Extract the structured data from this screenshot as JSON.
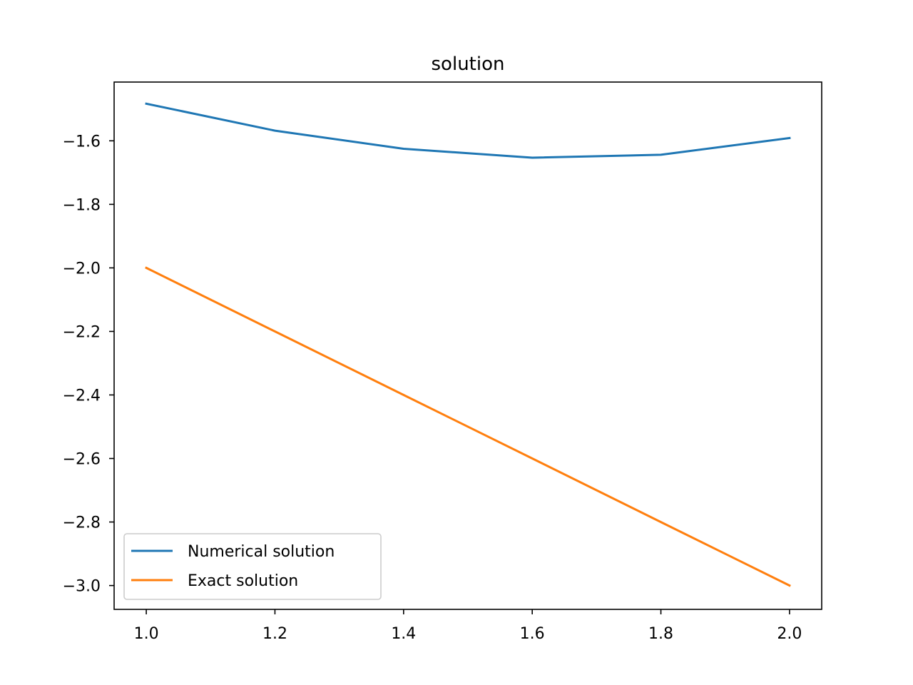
{
  "chart_data": {
    "type": "line",
    "title": "solution",
    "xlabel": "",
    "ylabel": "",
    "xlim": [
      0.95,
      2.05
    ],
    "ylim": [
      -3.075,
      -1.415
    ],
    "xticks": [
      1.0,
      1.2,
      1.4,
      1.6,
      1.8,
      2.0
    ],
    "xtick_labels": [
      "1.0",
      "1.2",
      "1.4",
      "1.6",
      "1.8",
      "2.0"
    ],
    "yticks": [
      -3.0,
      -2.8,
      -2.6,
      -2.4,
      -2.2,
      -2.0,
      -1.8,
      -1.6
    ],
    "ytick_labels": [
      "−3.0",
      "−2.8",
      "−2.6",
      "−2.4",
      "−2.2",
      "−2.0",
      "−1.8",
      "−1.6"
    ],
    "grid": false,
    "legend_position": "lower-left",
    "x": [
      1.0,
      1.2,
      1.4,
      1.6,
      1.8,
      2.0
    ],
    "series": [
      {
        "name": "Numerical solution",
        "color": "#1f77b4",
        "values": [
          -1.483,
          -1.568,
          -1.625,
          -1.653,
          -1.644,
          -1.591
        ]
      },
      {
        "name": "Exact solution",
        "color": "#ff7f0e",
        "values": [
          -2.0,
          -2.2,
          -2.4,
          -2.6,
          -2.8,
          -3.0
        ]
      }
    ]
  }
}
